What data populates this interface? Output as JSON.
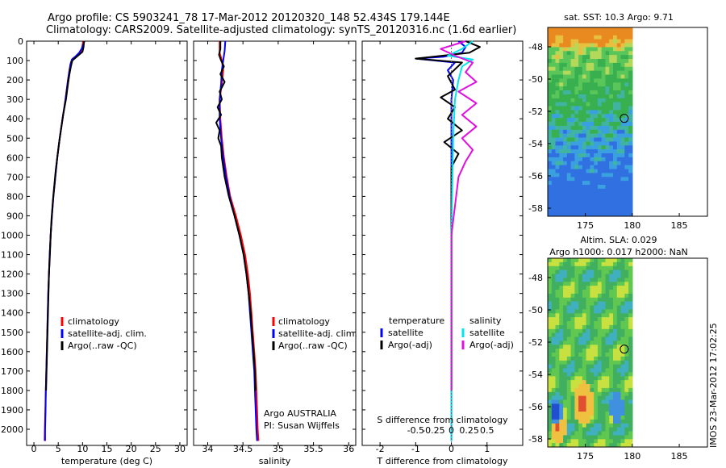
{
  "header": {
    "line1": "Argo profile: CS 5903241_78 17-Mar-2012 20120320_148 52.434S 179.144E",
    "line2": "Climatology: CARS2009. Satellite-adjusted climatology: synTS_20120316.nc (1.6d earlier)"
  },
  "colors": {
    "climatology": "#ff0000",
    "satellite": "#0000ff",
    "argo": "#000000",
    "satellite_s": "#00e5ee",
    "argo_s": "#e010e0"
  },
  "chart_data": [
    {
      "type": "line",
      "id": "temperature",
      "xlabel": "temperature (deg C)",
      "xlim": [
        -1.5,
        31.5
      ],
      "xticks": [
        0,
        5,
        10,
        15,
        20,
        25,
        30
      ],
      "ylim": [
        2080,
        0
      ],
      "yticks": [
        0,
        100,
        200,
        300,
        400,
        500,
        600,
        700,
        800,
        900,
        1000,
        1100,
        1200,
        1300,
        1400,
        1500,
        1600,
        1700,
        1800,
        1900,
        2000
      ],
      "legend": [
        "climatology",
        "satellite-adj. clim.",
        "Argo(..raw -QC)"
      ],
      "series": [
        {
          "name": "climatology",
          "color": "#ff0000",
          "points": [
            [
              10.2,
              0
            ],
            [
              10.0,
              20
            ],
            [
              9.9,
              40
            ],
            [
              9.6,
              60
            ],
            [
              8.8,
              75
            ],
            [
              8.0,
              90
            ],
            [
              7.6,
              110
            ],
            [
              7.3,
              150
            ],
            [
              7.0,
              200
            ],
            [
              6.5,
              300
            ],
            [
              5.9,
              400
            ],
            [
              5.3,
              500
            ],
            [
              4.8,
              600
            ],
            [
              4.4,
              700
            ],
            [
              4.0,
              800
            ],
            [
              3.7,
              900
            ],
            [
              3.45,
              1000
            ],
            [
              3.25,
              1100
            ],
            [
              3.1,
              1200
            ],
            [
              2.95,
              1300
            ],
            [
              2.85,
              1400
            ],
            [
              2.75,
              1500
            ],
            [
              2.65,
              1600
            ],
            [
              2.55,
              1700
            ],
            [
              2.45,
              1800
            ],
            [
              2.35,
              1900
            ],
            [
              2.25,
              2000
            ],
            [
              2.2,
              2060
            ]
          ]
        },
        {
          "name": "satellite-adj. clim.",
          "color": "#0000ff",
          "points": [
            [
              10.4,
              0
            ],
            [
              10.1,
              20
            ],
            [
              9.8,
              40
            ],
            [
              9.3,
              60
            ],
            [
              8.5,
              80
            ],
            [
              7.8,
              95
            ],
            [
              7.5,
              120
            ],
            [
              7.3,
              150
            ],
            [
              7.0,
              200
            ],
            [
              6.5,
              300
            ],
            [
              5.9,
              400
            ],
            [
              5.3,
              500
            ],
            [
              4.8,
              600
            ],
            [
              4.4,
              700
            ],
            [
              4.0,
              800
            ],
            [
              3.7,
              900
            ],
            [
              3.45,
              1000
            ],
            [
              3.25,
              1100
            ],
            [
              3.1,
              1200
            ],
            [
              2.95,
              1300
            ],
            [
              2.85,
              1400
            ],
            [
              2.75,
              1500
            ],
            [
              2.65,
              1600
            ],
            [
              2.55,
              1700
            ],
            [
              2.45,
              1800
            ],
            [
              2.4,
              1900
            ],
            [
              2.3,
              2000
            ],
            [
              2.3,
              2060
            ]
          ]
        },
        {
          "name": "Argo(..raw -QC)",
          "color": "#000000",
          "points": [
            [
              10.3,
              0
            ],
            [
              10.2,
              30
            ],
            [
              10.0,
              55
            ],
            [
              9.3,
              70
            ],
            [
              8.6,
              85
            ],
            [
              7.9,
              100
            ],
            [
              7.6,
              130
            ],
            [
              7.3,
              170
            ],
            [
              7.0,
              220
            ],
            [
              6.6,
              300
            ],
            [
              6.0,
              380
            ],
            [
              5.6,
              450
            ],
            [
              5.2,
              520
            ],
            [
              4.9,
              580
            ],
            [
              4.5,
              660
            ],
            [
              4.2,
              740
            ],
            [
              3.9,
              820
            ],
            [
              3.6,
              920
            ],
            [
              3.45,
              1000
            ],
            [
              3.3,
              1100
            ],
            [
              3.1,
              1200
            ],
            [
              3.0,
              1300
            ],
            [
              2.9,
              1400
            ],
            [
              2.8,
              1500
            ],
            [
              2.7,
              1600
            ],
            [
              2.6,
              1700
            ],
            [
              2.5,
              1800
            ]
          ]
        }
      ]
    },
    {
      "type": "line",
      "id": "salinity",
      "xlabel": "salinity",
      "xlim": [
        33.8,
        36.1
      ],
      "xticks": [
        34,
        34.5,
        35,
        35.5,
        36
      ],
      "ylim": [
        2080,
        0
      ],
      "legend": [
        "climatology",
        "satellite-adj. clim.",
        "Argo(..raw -QC)"
      ],
      "notes": [
        "Argo AUSTRALIA",
        "PI: Susan Wijffels"
      ],
      "series": [
        {
          "name": "climatology",
          "color": "#ff0000",
          "points": [
            [
              34.17,
              0
            ],
            [
              34.17,
              60
            ],
            [
              34.2,
              100
            ],
            [
              34.22,
              150
            ],
            [
              34.2,
              220
            ],
            [
              34.17,
              300
            ],
            [
              34.18,
              400
            ],
            [
              34.2,
              500
            ],
            [
              34.23,
              600
            ],
            [
              34.27,
              700
            ],
            [
              34.32,
              800
            ],
            [
              34.4,
              900
            ],
            [
              34.47,
              1000
            ],
            [
              34.53,
              1100
            ],
            [
              34.57,
              1200
            ],
            [
              34.6,
              1300
            ],
            [
              34.62,
              1400
            ],
            [
              34.64,
              1500
            ],
            [
              34.66,
              1600
            ],
            [
              34.68,
              1700
            ],
            [
              34.69,
              1800
            ],
            [
              34.7,
              1900
            ],
            [
              34.71,
              2000
            ],
            [
              34.72,
              2060
            ]
          ]
        },
        {
          "name": "satellite-adj. clim.",
          "color": "#0000ff",
          "points": [
            [
              34.25,
              0
            ],
            [
              34.24,
              50
            ],
            [
              34.22,
              100
            ],
            [
              34.2,
              150
            ],
            [
              34.19,
              220
            ],
            [
              34.17,
              300
            ],
            [
              34.17,
              400
            ],
            [
              34.19,
              500
            ],
            [
              34.22,
              600
            ],
            [
              34.26,
              700
            ],
            [
              34.31,
              800
            ],
            [
              34.38,
              900
            ],
            [
              34.45,
              1000
            ],
            [
              34.51,
              1100
            ],
            [
              34.55,
              1200
            ],
            [
              34.58,
              1300
            ],
            [
              34.6,
              1400
            ],
            [
              34.62,
              1500
            ],
            [
              34.64,
              1600
            ],
            [
              34.66,
              1700
            ],
            [
              34.67,
              1800
            ],
            [
              34.68,
              1900
            ],
            [
              34.69,
              2000
            ],
            [
              34.7,
              2060
            ]
          ]
        },
        {
          "name": "Argo(..raw -QC)",
          "color": "#000000",
          "points": [
            [
              34.18,
              0
            ],
            [
              34.18,
              40
            ],
            [
              34.16,
              70
            ],
            [
              34.19,
              100
            ],
            [
              34.23,
              130
            ],
            [
              34.18,
              170
            ],
            [
              34.24,
              210
            ],
            [
              34.17,
              260
            ],
            [
              34.2,
              300
            ],
            [
              34.14,
              340
            ],
            [
              34.19,
              380
            ],
            [
              34.12,
              420
            ],
            [
              34.17,
              460
            ],
            [
              34.15,
              500
            ],
            [
              34.19,
              540
            ],
            [
              34.2,
              600
            ],
            [
              34.24,
              700
            ],
            [
              34.3,
              800
            ],
            [
              34.38,
              900
            ],
            [
              34.45,
              1000
            ],
            [
              34.51,
              1100
            ],
            [
              34.55,
              1200
            ],
            [
              34.58,
              1300
            ],
            [
              34.61,
              1400
            ],
            [
              34.63,
              1500
            ],
            [
              34.65,
              1600
            ],
            [
              34.67,
              1700
            ],
            [
              34.68,
              1800
            ]
          ]
        }
      ]
    },
    {
      "type": "line",
      "id": "difference",
      "xlabel": "T difference from climatology",
      "xlabel_top": "S difference from climatology",
      "xlim": [
        -2.5,
        2.0
      ],
      "xticks": [
        -2,
        -1,
        0,
        1
      ],
      "xticks_top": [
        -0.5,
        -0.25,
        0,
        0.25,
        0.5
      ],
      "ylim": [
        2080,
        0
      ],
      "legend_t": {
        "title": "temperature",
        "items": [
          "satellite",
          "Argo(-adj)"
        ]
      },
      "legend_s": {
        "title": "salinity",
        "items": [
          "satellite",
          "Argo(-adj)"
        ]
      },
      "series": [
        {
          "name": "T satellite",
          "color": "#0000ff",
          "points": [
            [
              0.2,
              0
            ],
            [
              0.4,
              30
            ],
            [
              0.3,
              60
            ],
            [
              -0.2,
              80
            ],
            [
              -1.0,
              90
            ],
            [
              0.1,
              110
            ],
            [
              -0.1,
              150
            ],
            [
              0.05,
              200
            ],
            [
              0,
              300
            ],
            [
              0,
              500
            ],
            [
              0,
              1000
            ],
            [
              0,
              2060
            ]
          ]
        },
        {
          "name": "T Argo(-adj)",
          "color": "#000000",
          "points": [
            [
              0.4,
              0
            ],
            [
              0.8,
              30
            ],
            [
              0.5,
              60
            ],
            [
              -0.5,
              80
            ],
            [
              -1.0,
              90
            ],
            [
              0.3,
              110
            ],
            [
              -0.1,
              180
            ],
            [
              0.1,
              250
            ],
            [
              -0.3,
              290
            ],
            [
              0.1,
              340
            ],
            [
              -0.1,
              400
            ],
            [
              0.3,
              460
            ],
            [
              -0.2,
              520
            ],
            [
              0.2,
              580
            ],
            [
              0,
              650
            ],
            [
              0,
              1000
            ],
            [
              0,
              1800
            ]
          ]
        },
        {
          "name": "S satellite",
          "color": "#00e5ee",
          "points": [
            [
              0.6,
              0
            ],
            [
              0.3,
              40
            ],
            [
              -0.1,
              75
            ],
            [
              0.6,
              95
            ],
            [
              0.3,
              130
            ],
            [
              0.2,
              200
            ],
            [
              0.1,
              300
            ],
            [
              0.05,
              500
            ],
            [
              0,
              1000
            ],
            [
              0,
              2060
            ]
          ]
        },
        {
          "name": "S Argo(-adj)",
          "color": "#e010e0",
          "points": [
            [
              0.4,
              0
            ],
            [
              -0.3,
              40
            ],
            [
              0.1,
              75
            ],
            [
              0.6,
              110
            ],
            [
              0.4,
              160
            ],
            [
              0.7,
              210
            ],
            [
              0.2,
              260
            ],
            [
              0.7,
              320
            ],
            [
              0.3,
              380
            ],
            [
              0.7,
              440
            ],
            [
              0.3,
              500
            ],
            [
              0.6,
              560
            ],
            [
              0.4,
              620
            ],
            [
              0.2,
              700
            ],
            [
              0,
              1000
            ],
            [
              0,
              1800
            ]
          ]
        }
      ]
    },
    {
      "type": "heatmap",
      "id": "sst",
      "title": "sat. SST: 10.3 Argo: 9.71",
      "xlim": [
        171,
        188
      ],
      "xticks": [
        175,
        180,
        185
      ],
      "ylim": [
        -58.5,
        -46.8
      ],
      "yticks": [
        -48,
        -50,
        -52,
        -54,
        -56,
        -58
      ],
      "data_extent": [
        171,
        180,
        -58.5,
        -46.8
      ],
      "marker": [
        179.144,
        -52.434
      ]
    },
    {
      "type": "heatmap",
      "id": "sla",
      "title": "Altim. SLA: 0.029",
      "subtitle": "Argo h1000: 0.017 h2000: NaN",
      "xlim": [
        171,
        188
      ],
      "xticks": [
        175,
        180,
        185
      ],
      "ylim": [
        -58.5,
        -46.8
      ],
      "yticks": [
        -48,
        -50,
        -52,
        -54,
        -56,
        -58
      ],
      "data_extent": [
        171,
        180,
        -58.5,
        -46.8
      ],
      "marker": [
        179.144,
        -52.434
      ]
    }
  ],
  "footer": {
    "stamp": "IMOS 23-Mar-2012 17:02:25"
  }
}
